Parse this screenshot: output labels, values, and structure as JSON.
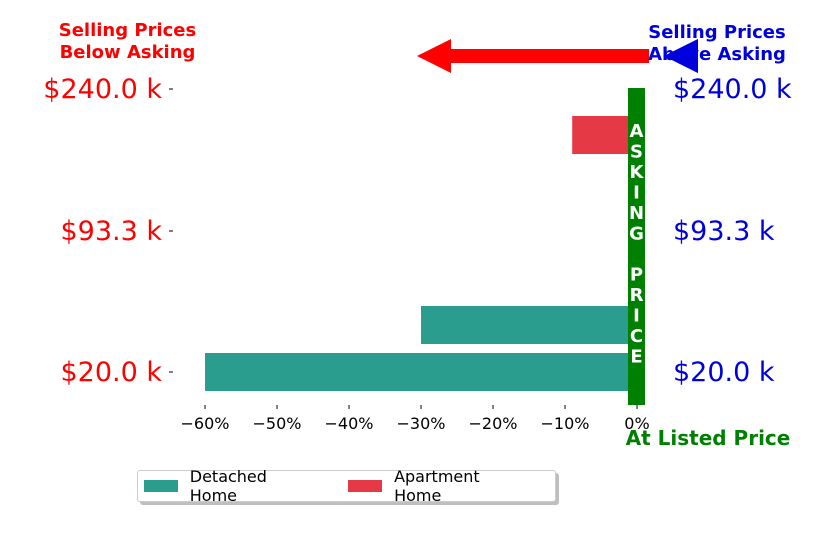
{
  "headers": {
    "left_line1": "Selling Prices",
    "left_line2": "Below Asking",
    "right_line1": "Selling Prices",
    "right_line2": "Above Asking"
  },
  "colors": {
    "below": "#ff0000",
    "above": "#0000dd",
    "asking": "#008000",
    "detached": "#2a9d8f",
    "apartment": "#e63946"
  },
  "chart_data": {
    "type": "bar",
    "orientation": "horizontal",
    "xlim": [
      -0.65,
      0.0
    ],
    "x_ticks": [
      -0.6,
      -0.5,
      -0.4,
      -0.3,
      -0.2,
      -0.1,
      0.0
    ],
    "x_tick_labels": [
      "−60%",
      "−50%",
      "−40%",
      "−30%",
      "−20%",
      "−10%",
      "0%"
    ],
    "y_ticks": [
      20.0,
      93.3,
      240.0
    ],
    "y_tick_labels": [
      "$20.0 k",
      "$93.3 k",
      "$240.0 k"
    ],
    "right_tick_labels": [
      "$20.0 k",
      "$93.3 k",
      "$240.0 k"
    ],
    "asking_label": "ASKING PRICE",
    "asking_letters": [
      "A",
      "S",
      "K",
      "I",
      "N",
      "G",
      "",
      "P",
      "R",
      "I",
      "C",
      "E"
    ],
    "xlabel": "At Listed Price",
    "series": [
      {
        "name": "Detached Home",
        "color": "#2a9d8f",
        "bars": [
          {
            "y": 20.0,
            "value": -0.6
          },
          {
            "y": 60.0,
            "value": -0.3
          }
        ]
      },
      {
        "name": "Apartment Home",
        "color": "#e63946",
        "bars": [
          {
            "y": 215.0,
            "value": -0.09
          }
        ]
      }
    ],
    "legend_position": "bottom-left"
  }
}
